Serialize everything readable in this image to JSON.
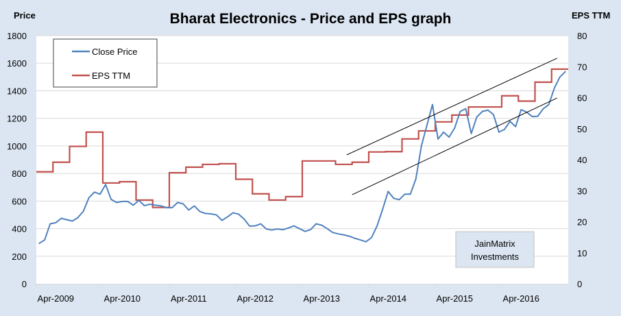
{
  "chart_data": {
    "type": "line",
    "title": "Bharat Electronics - Price and EPS graph",
    "ylabel_left": "Price",
    "ylabel_right": "EPS TTM",
    "ylim_left": [
      0,
      1800
    ],
    "ylim_right": [
      0,
      80
    ],
    "yticks_left": [
      "0",
      "200",
      "400",
      "600",
      "800",
      "1000",
      "1200",
      "1400",
      "1600",
      "1800"
    ],
    "yticks_right": [
      "0",
      "10",
      "20",
      "30",
      "40",
      "50",
      "60",
      "70",
      "80"
    ],
    "xticks": [
      "Apr-2009",
      "Apr-2010",
      "Apr-2011",
      "Apr-2012",
      "Apr-2013",
      "Apr-2014",
      "Apr-2015",
      "Apr-2016"
    ],
    "xlim": [
      "2009-01",
      "2016-12"
    ],
    "grid": "horizontal",
    "legend_placement": "top-left",
    "colors": {
      "price": "#4f81bd",
      "eps": "#c0504d",
      "background": "#dce6f2",
      "trendline": "#000000"
    },
    "series": [
      {
        "name": "Close Price",
        "axis": "left",
        "style": "line",
        "x": [
          "2009-01",
          "2009-02",
          "2009-03",
          "2009-04",
          "2009-05",
          "2009-06",
          "2009-07",
          "2009-08",
          "2009-09",
          "2009-10",
          "2009-11",
          "2009-12",
          "2010-01",
          "2010-02",
          "2010-03",
          "2010-04",
          "2010-05",
          "2010-06",
          "2010-07",
          "2010-08",
          "2010-09",
          "2010-10",
          "2010-11",
          "2010-12",
          "2011-01",
          "2011-02",
          "2011-03",
          "2011-04",
          "2011-05",
          "2011-06",
          "2011-07",
          "2011-08",
          "2011-09",
          "2011-10",
          "2011-11",
          "2011-12",
          "2012-01",
          "2012-02",
          "2012-03",
          "2012-04",
          "2012-05",
          "2012-06",
          "2012-07",
          "2012-08",
          "2012-09",
          "2012-10",
          "2012-11",
          "2012-12",
          "2013-01",
          "2013-02",
          "2013-03",
          "2013-04",
          "2013-05",
          "2013-06",
          "2013-07",
          "2013-08",
          "2013-09",
          "2013-10",
          "2013-11",
          "2013-12",
          "2014-01",
          "2014-02",
          "2014-03",
          "2014-04",
          "2014-05",
          "2014-06",
          "2014-07",
          "2014-08",
          "2014-09",
          "2014-10",
          "2014-11",
          "2014-12",
          "2015-01",
          "2015-02",
          "2015-03",
          "2015-04",
          "2015-05",
          "2015-06",
          "2015-07",
          "2015-08",
          "2015-09",
          "2015-10",
          "2015-11",
          "2015-12",
          "2016-01",
          "2016-02",
          "2016-03",
          "2016-04",
          "2016-05",
          "2016-06",
          "2016-07",
          "2016-08",
          "2016-09",
          "2016-10",
          "2016-11",
          "2016-12"
        ],
        "values": [
          293,
          318,
          435,
          443,
          475,
          465,
          455,
          480,
          527,
          625,
          665,
          650,
          720,
          612,
          590,
          597,
          597,
          570,
          605,
          567,
          577,
          570,
          565,
          552,
          552,
          590,
          580,
          535,
          565,
          525,
          510,
          507,
          500,
          460,
          485,
          515,
          505,
          470,
          418,
          420,
          435,
          398,
          390,
          398,
          392,
          405,
          420,
          400,
          380,
          393,
          435,
          425,
          400,
          372,
          362,
          355,
          345,
          330,
          318,
          305,
          335,
          420,
          540,
          670,
          620,
          610,
          650,
          650,
          760,
          1000,
          1150,
          1300,
          1050,
          1100,
          1064,
          1130,
          1250,
          1270,
          1090,
          1210,
          1250,
          1260,
          1228,
          1100,
          1120,
          1178,
          1140,
          1263,
          1245,
          1213,
          1215,
          1270,
          1300,
          1420,
          1500,
          1540
        ]
      },
      {
        "name": "EPS TTM",
        "axis": "right",
        "style": "step",
        "x": [
          "2009-01",
          "2009-04",
          "2009-07",
          "2009-10",
          "2010-01",
          "2010-04",
          "2010-07",
          "2010-10",
          "2011-01",
          "2011-04",
          "2011-07",
          "2011-10",
          "2012-01",
          "2012-04",
          "2012-07",
          "2012-10",
          "2013-01",
          "2013-04",
          "2013-07",
          "2013-10",
          "2014-01",
          "2014-04",
          "2014-07",
          "2014-10",
          "2015-01",
          "2015-04",
          "2015-07",
          "2015-10",
          "2016-01",
          "2016-04",
          "2016-07",
          "2016-10"
        ],
        "values": [
          36.1,
          39.2,
          44.3,
          48.9,
          32.5,
          32.9,
          27.0,
          24.6,
          35.8,
          37.6,
          38.5,
          38.7,
          33.7,
          29.0,
          27.0,
          28.1,
          39.6,
          39.6,
          38.5,
          39.2,
          42.5,
          42.6,
          46.7,
          49.3,
          52.2,
          54.4,
          57.0,
          57.0,
          60.6,
          58.9,
          65.0,
          69.2
        ]
      }
    ],
    "trendlines": [
      {
        "from": [
          "2013-09",
          935
        ],
        "to": [
          "2016-11",
          1636
        ]
      },
      {
        "from": [
          "2013-10",
          646
        ],
        "to": [
          "2016-11",
          1348
        ]
      }
    ],
    "watermark": [
      "JainMatrix",
      "Investments"
    ]
  }
}
